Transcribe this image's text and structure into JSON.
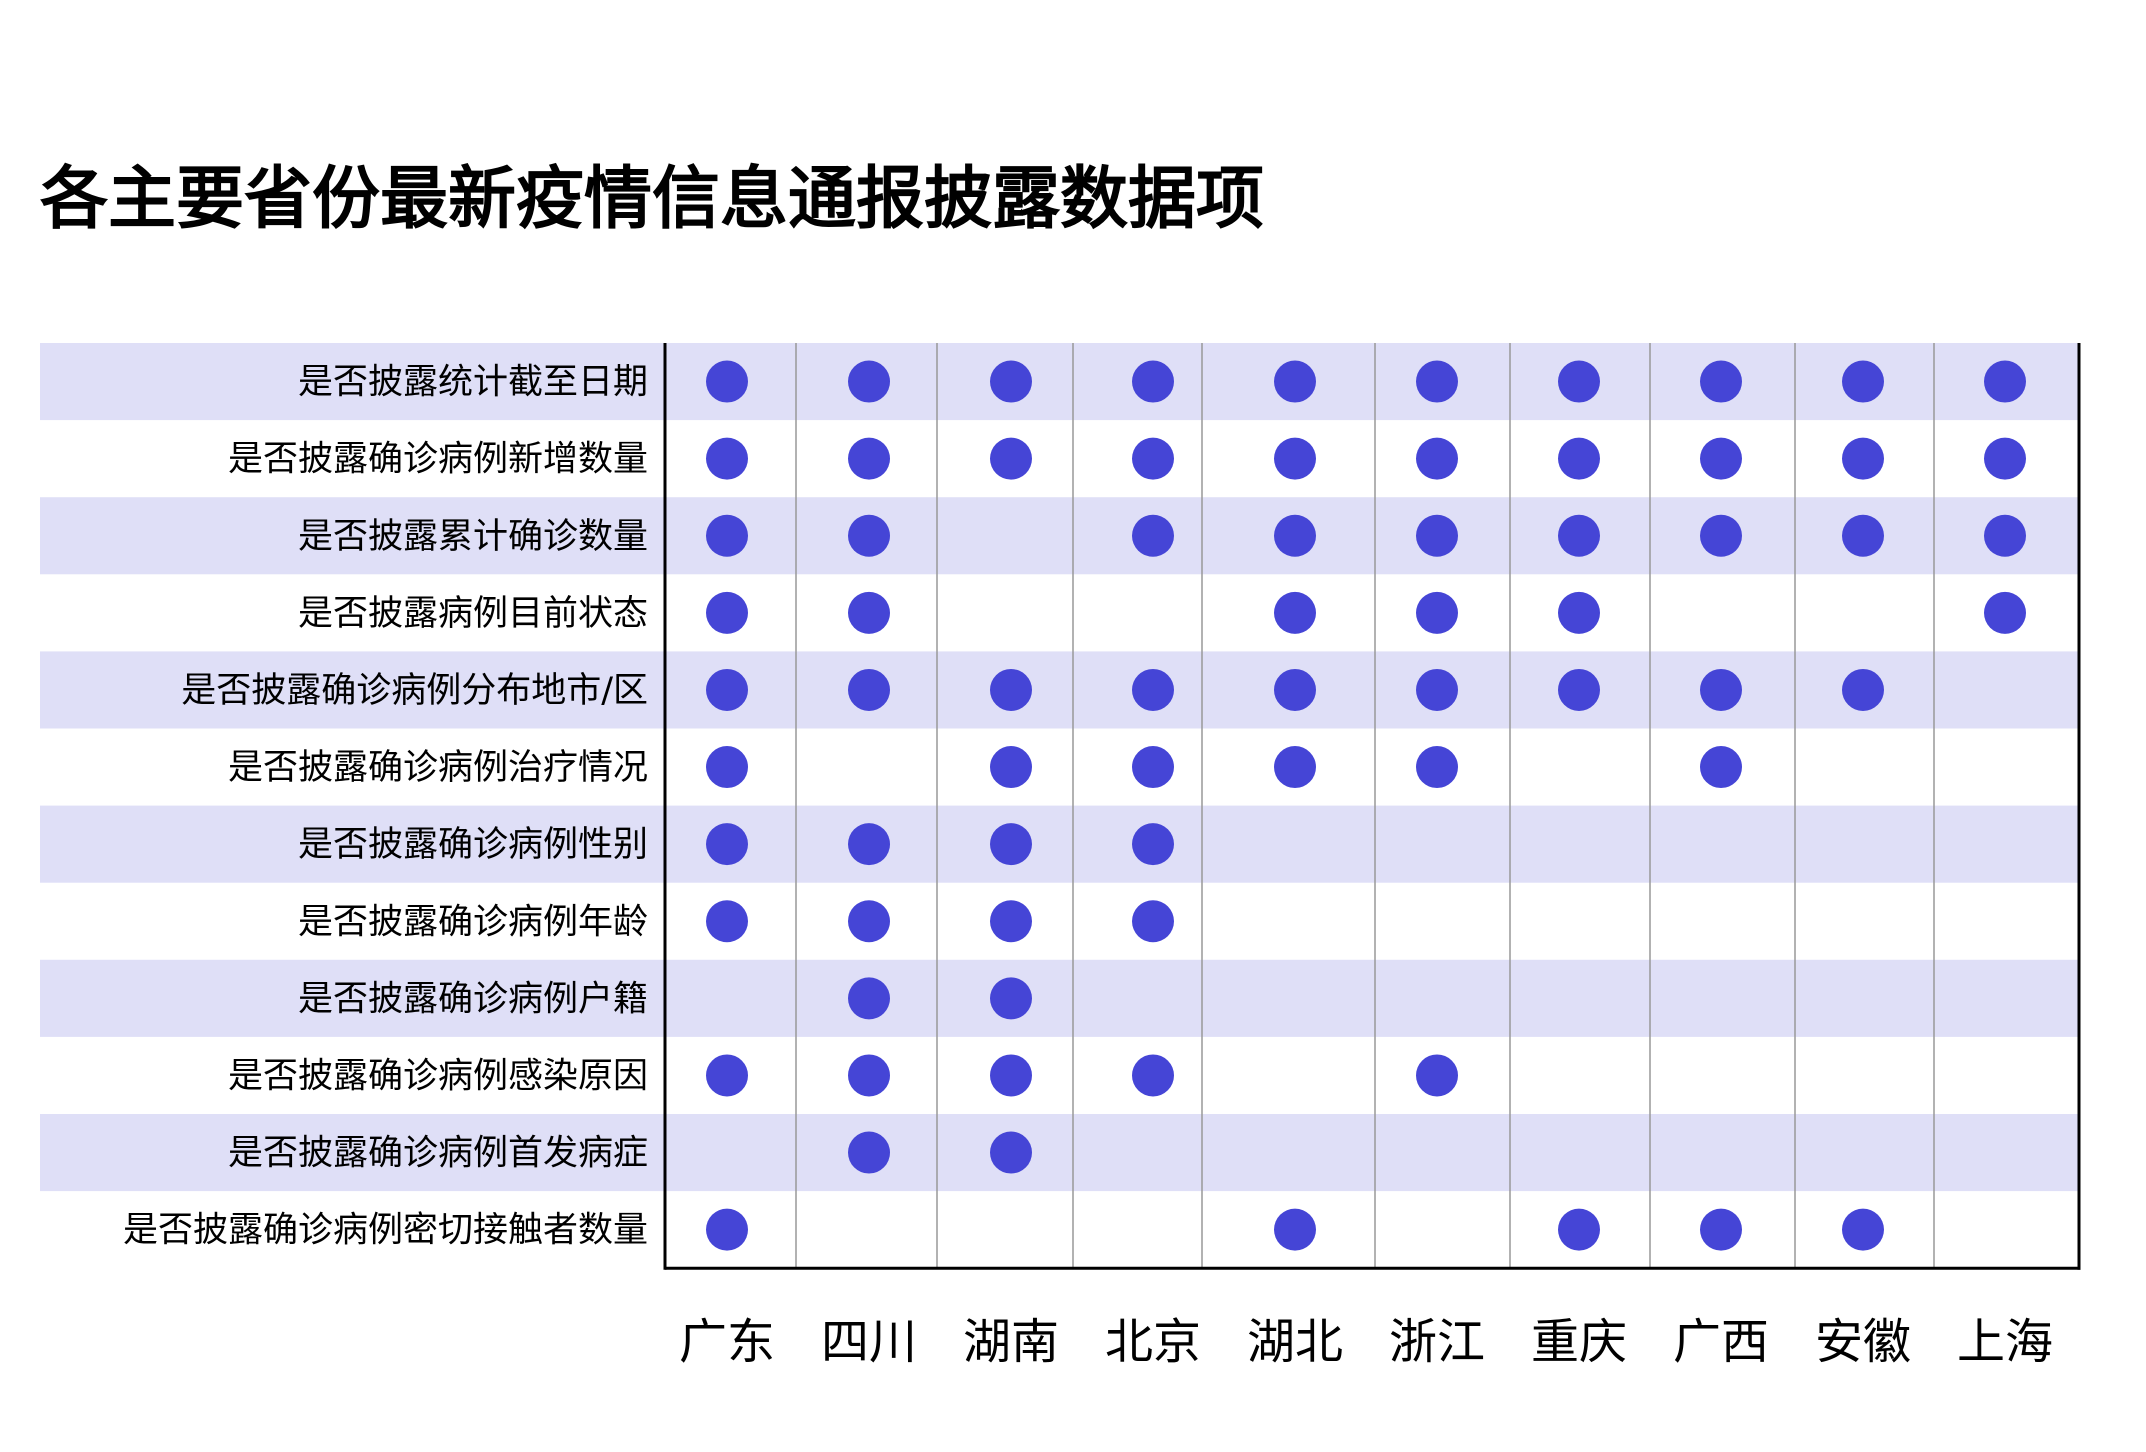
{
  "chart_data": {
    "type": "heatmap",
    "title": "各主要省份最新疫情信息通报披露数据项",
    "columns": [
      "广东",
      "四川",
      "湖南",
      "北京",
      "湖北",
      "浙江",
      "重庆",
      "广西",
      "安徽",
      "上海"
    ],
    "rows": [
      "是否披露统计截至日期",
      "是否披露确诊病例新增数量",
      "是否披露累计确诊数量",
      "是否披露病例目前状态",
      "是否披露确诊病例分布地市/区",
      "是否披露确诊病例治疗情况",
      "是否披露确诊病例性别",
      "是否披露确诊病例年龄",
      "是否披露确诊病例户籍",
      "是否披露确诊病例感染原因",
      "是否披露确诊病例首发病症",
      "是否披露确诊病例密切接触者数量"
    ],
    "values": [
      [
        1,
        1,
        1,
        1,
        1,
        1,
        1,
        1,
        1,
        1
      ],
      [
        1,
        1,
        1,
        1,
        1,
        1,
        1,
        1,
        1,
        1
      ],
      [
        1,
        1,
        0,
        1,
        1,
        1,
        1,
        1,
        1,
        1
      ],
      [
        1,
        1,
        0,
        0,
        1,
        1,
        1,
        0,
        0,
        1
      ],
      [
        1,
        1,
        1,
        1,
        1,
        1,
        1,
        1,
        1,
        0
      ],
      [
        1,
        0,
        1,
        1,
        1,
        1,
        0,
        1,
        0,
        0
      ],
      [
        1,
        1,
        1,
        1,
        0,
        0,
        0,
        0,
        0,
        0
      ],
      [
        1,
        1,
        1,
        1,
        0,
        0,
        0,
        0,
        0,
        0
      ],
      [
        0,
        1,
        1,
        0,
        0,
        0,
        0,
        0,
        0,
        0
      ],
      [
        1,
        1,
        1,
        1,
        0,
        1,
        0,
        0,
        0,
        0
      ],
      [
        0,
        1,
        1,
        0,
        0,
        0,
        0,
        0,
        0,
        0
      ],
      [
        1,
        0,
        0,
        0,
        1,
        0,
        1,
        1,
        1,
        0
      ]
    ],
    "colors": {
      "dot": "#4545d6",
      "band": "#dfdff7",
      "divider": "#999999",
      "axis": "#000000"
    }
  }
}
